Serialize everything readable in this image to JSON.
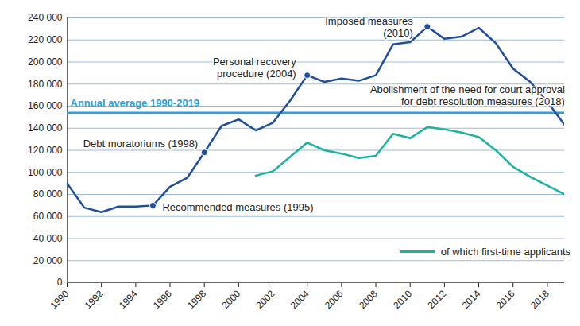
{
  "chart_data": {
    "type": "line",
    "x": [
      1990,
      1991,
      1992,
      1993,
      1994,
      1995,
      1996,
      1997,
      1998,
      1999,
      2000,
      2001,
      2002,
      2003,
      2004,
      2005,
      2006,
      2007,
      2008,
      2009,
      2010,
      2011,
      2012,
      2013,
      2014,
      2015,
      2016,
      2017,
      2018,
      2019
    ],
    "series": [
      {
        "color": "#1f4e9c",
        "values": [
          90000,
          68000,
          64000,
          69000,
          69000,
          70000,
          87000,
          95000,
          118000,
          142000,
          148000,
          138000,
          145000,
          165000,
          188000,
          182000,
          185000,
          183000,
          188000,
          216000,
          218000,
          232000,
          221000,
          223000,
          231000,
          217000,
          194000,
          182000,
          164000,
          143000
        ]
      },
      {
        "name": "of which first-time applicants",
        "color": "#1ab3a0",
        "values": [
          null,
          null,
          null,
          null,
          null,
          null,
          null,
          null,
          null,
          null,
          null,
          97000,
          101000,
          114000,
          127000,
          120000,
          117000,
          113000,
          115000,
          135000,
          131000,
          141000,
          139000,
          136000,
          132000,
          120000,
          105000,
          96000,
          88000,
          80000
        ]
      }
    ],
    "average": {
      "label": "Annual average 1990-2019",
      "value": 154000,
      "color": "#2e9fd9"
    },
    "annotations": [
      {
        "text": "Recommended measures (1995)",
        "x": 1995,
        "y": 70000
      },
      {
        "text": "Debt moratoriums (1998)",
        "x": 1998,
        "y": 118000
      },
      {
        "text": "Personal recovery\nprocedure (2004)",
        "x": 2004,
        "y": 188000
      },
      {
        "text": "Imposed measures\n(2010)",
        "x": 2011,
        "y": 232000
      },
      {
        "text": "Abolishment of the need for court approval\nfor debt resolution measures (2018)",
        "x": 2018,
        "y": 164000
      }
    ],
    "xlim": [
      1990,
      2019
    ],
    "xticks": [
      1990,
      1992,
      1994,
      1996,
      1998,
      2000,
      2002,
      2004,
      2006,
      2008,
      2010,
      2012,
      2014,
      2016,
      2018
    ],
    "ylim": [
      0,
      240000
    ],
    "yticks": [
      {
        "value": 0,
        "label": "0"
      },
      {
        "value": 20000,
        "label": "20 000"
      },
      {
        "value": 40000,
        "label": "40 000"
      },
      {
        "value": 60000,
        "label": "60 000"
      },
      {
        "value": 80000,
        "label": "80 000"
      },
      {
        "value": 100000,
        "label": "100 000"
      },
      {
        "value": 120000,
        "label": "120 000"
      },
      {
        "value": 140000,
        "label": "140 000"
      },
      {
        "value": 160000,
        "label": "160 000"
      },
      {
        "value": 180000,
        "label": "180 000"
      },
      {
        "value": 200000,
        "label": "200 000"
      },
      {
        "value": 220000,
        "label": "220 000"
      },
      {
        "value": 240000,
        "label": "240 000"
      }
    ],
    "grid": true,
    "legend": "bottom right"
  }
}
